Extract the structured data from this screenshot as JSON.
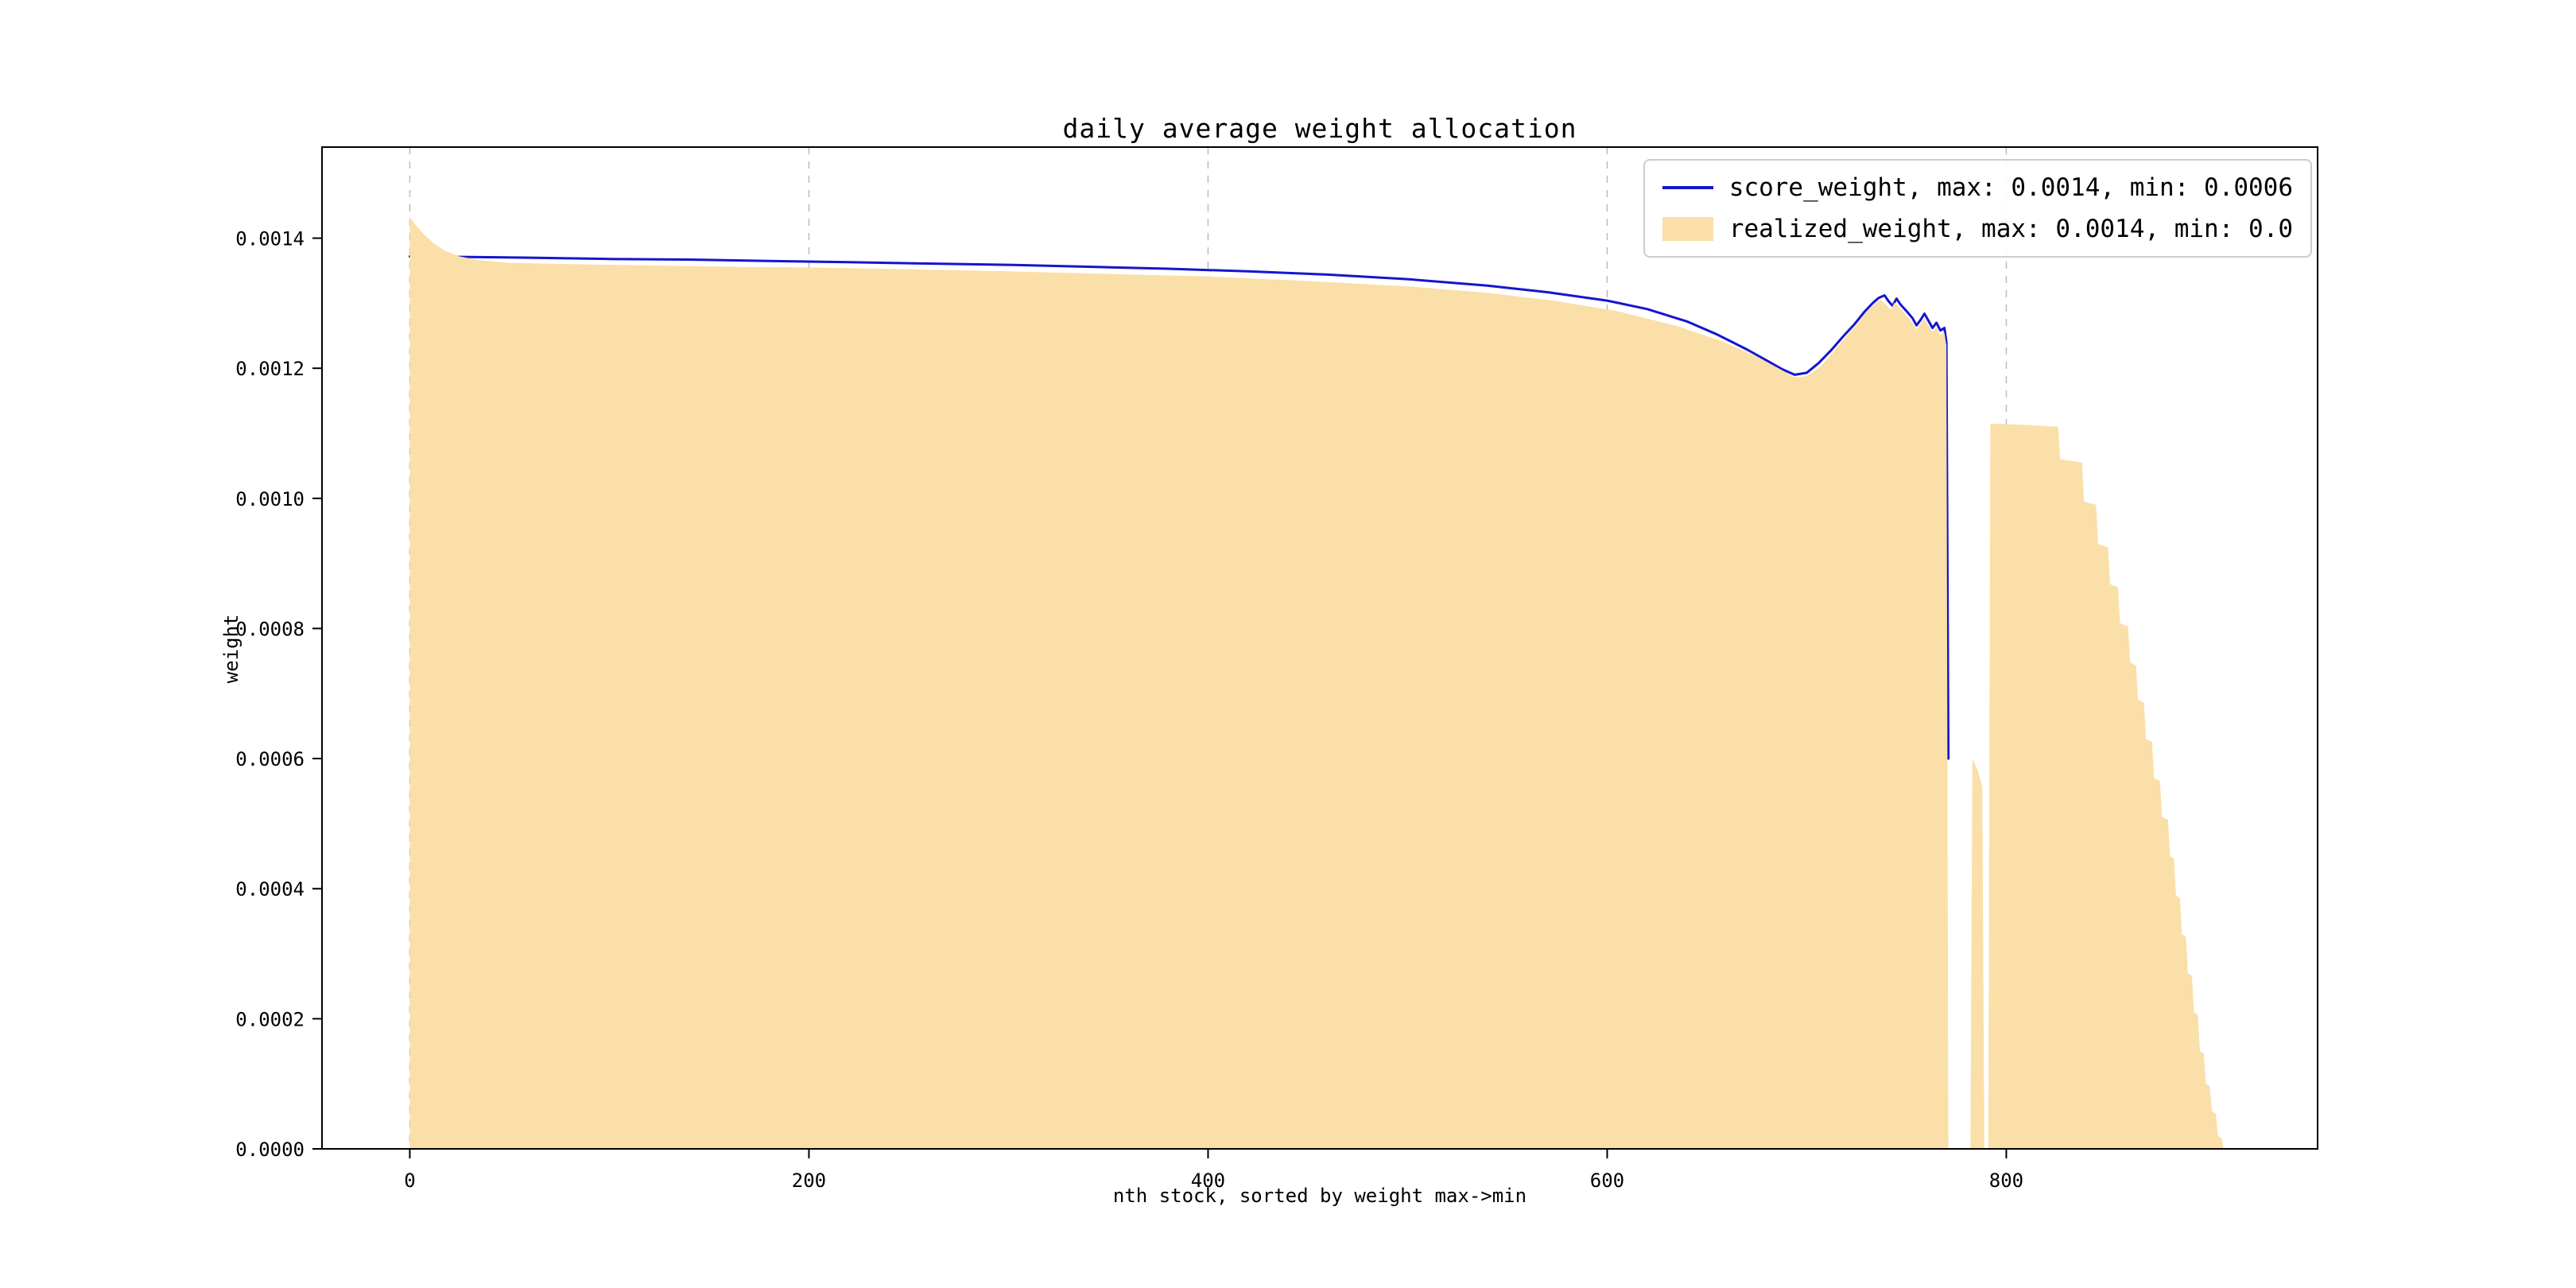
{
  "chart_data": {
    "type": "area",
    "title": "daily average weight allocation",
    "xlabel": "nth stock, sorted by weight max->min",
    "ylabel": "weight",
    "xlim": [
      -44,
      956
    ],
    "ylim": [
      0,
      0.00154
    ],
    "xticks": [
      0,
      200,
      400,
      600,
      800
    ],
    "xtick_labels": [
      "0",
      "200",
      "400",
      "600",
      "800"
    ],
    "yticks": [
      0,
      0.0002,
      0.0004,
      0.0006,
      0.0008,
      0.001,
      0.0012,
      0.0014
    ],
    "ytick_labels": [
      "0.0000",
      "0.0002",
      "0.0004",
      "0.0006",
      "0.0008",
      "0.0010",
      "0.0012",
      "0.0014"
    ],
    "grid": "vertical-dashed",
    "grid_color": "#bbbbbb",
    "axis_color": "#000000",
    "legend": [
      {
        "type": "line",
        "color": "#1515cf",
        "label": "score_weight, max: 0.0014, min: 0.0006"
      },
      {
        "type": "patch",
        "color": "#fadfa8",
        "label": "realized_weight, max: 0.0014, min: 0.0"
      }
    ],
    "series": [
      {
        "name": "score_weight",
        "type": "line",
        "color": "#1515cf",
        "points": [
          [
            0,
            0.001372
          ],
          [
            30,
            0.001371
          ],
          [
            60,
            0.00137
          ],
          [
            100,
            0.001368
          ],
          [
            140,
            0.001367
          ],
          [
            180,
            0.001365
          ],
          [
            220,
            0.001363
          ],
          [
            260,
            0.001361
          ],
          [
            300,
            0.001359
          ],
          [
            340,
            0.001356
          ],
          [
            380,
            0.001353
          ],
          [
            420,
            0.001349
          ],
          [
            460,
            0.001344
          ],
          [
            500,
            0.001337
          ],
          [
            540,
            0.001327
          ],
          [
            570,
            0.001317
          ],
          [
            600,
            0.001304
          ],
          [
            620,
            0.001291
          ],
          [
            640,
            0.001272
          ],
          [
            655,
            0.001252
          ],
          [
            670,
            0.001229
          ],
          [
            680,
            0.001212
          ],
          [
            688,
            0.001198
          ],
          [
            694,
            0.00119
          ],
          [
            700,
            0.001193
          ],
          [
            706,
            0.001208
          ],
          [
            712,
            0.001227
          ],
          [
            718,
            0.001248
          ],
          [
            724,
            0.001268
          ],
          [
            729,
            0.001287
          ],
          [
            733,
            0.0013
          ],
          [
            736,
            0.001308
          ],
          [
            739,
            0.001312
          ],
          [
            741,
            0.001303
          ],
          [
            743,
            0.001296
          ],
          [
            745,
            0.001307
          ],
          [
            747,
            0.001298
          ],
          [
            750,
            0.001288
          ],
          [
            753,
            0.001277
          ],
          [
            755,
            0.001266
          ],
          [
            757,
            0.001274
          ],
          [
            759,
            0.001284
          ],
          [
            761,
            0.001273
          ],
          [
            763,
            0.001262
          ],
          [
            765,
            0.00127
          ],
          [
            767,
            0.001258
          ],
          [
            769,
            0.001262
          ],
          [
            770,
            0.00124
          ],
          [
            771,
            0.0006
          ]
        ]
      },
      {
        "name": "realized_weight",
        "type": "area",
        "color": "#fadfa8",
        "points": [
          [
            0,
            0.001432
          ],
          [
            3,
            0.00142
          ],
          [
            7,
            0.001406
          ],
          [
            12,
            0.001392
          ],
          [
            18,
            0.00138
          ],
          [
            25,
            0.001372
          ],
          [
            35,
            0.001366
          ],
          [
            50,
            0.001362
          ],
          [
            80,
            0.00136
          ],
          [
            120,
            0.001358
          ],
          [
            160,
            0.001356
          ],
          [
            200,
            0.001355
          ],
          [
            250,
            0.001352
          ],
          [
            300,
            0.001349
          ],
          [
            350,
            0.001345
          ],
          [
            400,
            0.001341
          ],
          [
            450,
            0.001334
          ],
          [
            500,
            0.001326
          ],
          [
            540,
            0.001316
          ],
          [
            575,
            0.001303
          ],
          [
            605,
            0.001288
          ],
          [
            635,
            0.001265
          ],
          [
            658,
            0.001241
          ],
          [
            675,
            0.001218
          ],
          [
            687,
            0.001198
          ],
          [
            694,
            0.001186
          ],
          [
            700,
            0.001188
          ],
          [
            707,
            0.001203
          ],
          [
            713,
            0.001224
          ],
          [
            719,
            0.001246
          ],
          [
            725,
            0.001267
          ],
          [
            730,
            0.001287
          ],
          [
            734,
            0.001299
          ],
          [
            737,
            0.001305
          ],
          [
            740,
            0.001297
          ],
          [
            742,
            0.00129
          ],
          [
            744,
            0.001301
          ],
          [
            747,
            0.001292
          ],
          [
            750,
            0.001281
          ],
          [
            753,
            0.00127
          ],
          [
            755,
            0.00126
          ],
          [
            757,
            0.001268
          ],
          [
            759,
            0.001277
          ],
          [
            761,
            0.001266
          ],
          [
            763,
            0.001256
          ],
          [
            765,
            0.001263
          ],
          [
            767,
            0.001251
          ],
          [
            769,
            0.001255
          ],
          [
            770,
            0.001235
          ],
          [
            771,
            0
          ],
          [
            782,
            0
          ],
          [
            783,
            0.0006
          ],
          [
            786,
            0.00058
          ],
          [
            788,
            0.000555
          ],
          [
            789,
            0
          ],
          [
            791,
            0
          ],
          [
            792,
            0.001115
          ],
          [
            810,
            0.001113
          ],
          [
            826,
            0.00111
          ],
          [
            827,
            0.00106
          ],
          [
            838,
            0.001055
          ],
          [
            839,
            0.000995
          ],
          [
            845,
            0.00099
          ],
          [
            846,
            0.00093
          ],
          [
            851,
            0.000925
          ],
          [
            852,
            0.000868
          ],
          [
            856,
            0.000863
          ],
          [
            857,
            0.000808
          ],
          [
            861,
            0.000803
          ],
          [
            862,
            0.000748
          ],
          [
            865,
            0.000743
          ],
          [
            866,
            0.00069
          ],
          [
            869,
            0.000686
          ],
          [
            870,
            0.00063
          ],
          [
            873,
            0.000626
          ],
          [
            874,
            0.00057
          ],
          [
            877,
            0.000566
          ],
          [
            878,
            0.00051
          ],
          [
            881,
            0.000506
          ],
          [
            882,
            0.00045
          ],
          [
            884,
            0.000446
          ],
          [
            885,
            0.00039
          ],
          [
            887,
            0.000386
          ],
          [
            888,
            0.00033
          ],
          [
            890,
            0.000326
          ],
          [
            891,
            0.00027
          ],
          [
            893,
            0.000266
          ],
          [
            894,
            0.00021
          ],
          [
            896,
            0.000206
          ],
          [
            897,
            0.00015
          ],
          [
            899,
            0.000146
          ],
          [
            900,
            0.0001
          ],
          [
            902,
            9.6e-05
          ],
          [
            903,
            5.8e-05
          ],
          [
            905,
            5.4e-05
          ],
          [
            906,
            2e-05
          ],
          [
            908,
            1.6e-05
          ],
          [
            909,
            0
          ]
        ]
      }
    ]
  }
}
